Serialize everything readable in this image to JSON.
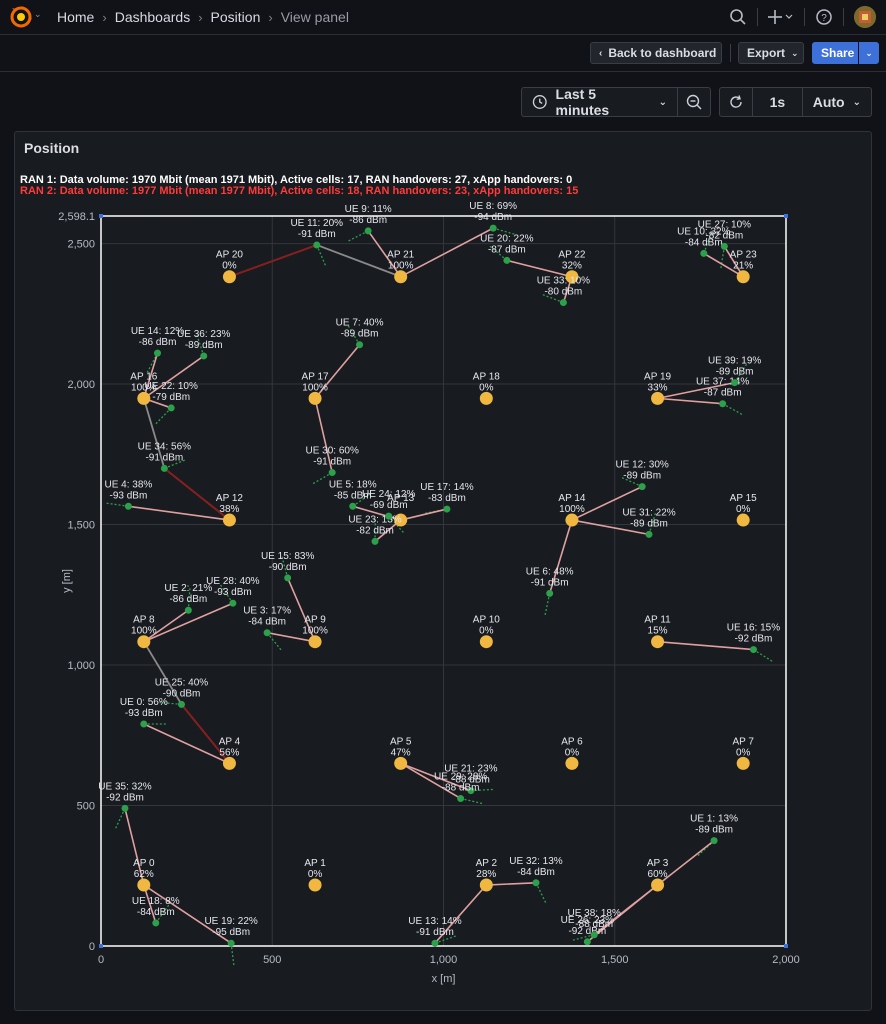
{
  "breadcrumb": {
    "home": "Home",
    "dashboards": "Dashboards",
    "position": "Position",
    "view": "View panel"
  },
  "icons": {
    "logo": "grafana-logo",
    "search": "search-icon",
    "add": "plus-icon",
    "help": "help-icon",
    "avatar": "user-avatar"
  },
  "toolbar": {
    "back": "Back to dashboard",
    "export": "Export",
    "share": "Share"
  },
  "timepicker": {
    "range": "Last 5 minutes",
    "refresh_interval": "1s",
    "auto": "Auto"
  },
  "panel": {
    "title": "Position",
    "ran1": "RAN 1: Data volume: 1970 Mbit (mean 1971 Mbit), Active cells: 17, RAN handovers: 27, xApp handovers: 0",
    "ran2": "RAN 2: Data volume: 1977 Mbit (mean 1977 Mbit), Active cells: 18, RAN handovers: 23, xApp handovers: 15"
  },
  "colors": {
    "accent": "#3d71d9",
    "ap": "#f0b840",
    "ue": "#2ca04a",
    "link": "#e0a0a0",
    "ran2_text": "#ff3b3b"
  },
  "chart_data": {
    "type": "scatter",
    "xlabel": "x [m]",
    "ylabel": "y [m]",
    "xlim": [
      0,
      2000
    ],
    "ylim": [
      0,
      2598.1
    ],
    "x_ticks": [
      "0",
      "500",
      "1,000",
      "1,500",
      "2,000"
    ],
    "y_ticks": [
      "0",
      "500",
      "1,000",
      "1,500",
      "2,000",
      "2,500"
    ],
    "y_max_label": "2,598.1",
    "grid": true,
    "aps": [
      {
        "name": "AP 0",
        "pct": "62%",
        "x": 125,
        "y": 217
      },
      {
        "name": "AP 1",
        "pct": "0%",
        "x": 625,
        "y": 217
      },
      {
        "name": "AP 2",
        "pct": "28%",
        "x": 1125,
        "y": 217
      },
      {
        "name": "AP 3",
        "pct": "60%",
        "x": 1625,
        "y": 217
      },
      {
        "name": "AP 4",
        "pct": "56%",
        "x": 375,
        "y": 650
      },
      {
        "name": "AP 5",
        "pct": "47%",
        "x": 875,
        "y": 650
      },
      {
        "name": "AP 6",
        "pct": "0%",
        "x": 1375,
        "y": 650
      },
      {
        "name": "AP 7",
        "pct": "0%",
        "x": 1875,
        "y": 650
      },
      {
        "name": "AP 8",
        "pct": "100%",
        "x": 125,
        "y": 1083
      },
      {
        "name": "AP 9",
        "pct": "100%",
        "x": 625,
        "y": 1083
      },
      {
        "name": "AP 10",
        "pct": "0%",
        "x": 1125,
        "y": 1083
      },
      {
        "name": "AP 11",
        "pct": "15%",
        "x": 1625,
        "y": 1083
      },
      {
        "name": "AP 12",
        "pct": "38%",
        "x": 375,
        "y": 1516
      },
      {
        "name": "AP 13",
        "pct": "",
        "x": 875,
        "y": 1516
      },
      {
        "name": "AP 14",
        "pct": "100%",
        "x": 1375,
        "y": 1516
      },
      {
        "name": "AP 15",
        "pct": "0%",
        "x": 1875,
        "y": 1516
      },
      {
        "name": "AP 16",
        "pct": "100%",
        "x": 125,
        "y": 1949
      },
      {
        "name": "AP 17",
        "pct": "100%",
        "x": 625,
        "y": 1949
      },
      {
        "name": "AP 18",
        "pct": "0%",
        "x": 1125,
        "y": 1949
      },
      {
        "name": "AP 19",
        "pct": "33%",
        "x": 1625,
        "y": 1949
      },
      {
        "name": "AP 20",
        "pct": "0%",
        "x": 375,
        "y": 2382
      },
      {
        "name": "AP 21",
        "pct": "100%",
        "x": 875,
        "y": 2382
      },
      {
        "name": "AP 22",
        "pct": "32%",
        "x": 1375,
        "y": 2382
      },
      {
        "name": "AP 23",
        "pct": "21%",
        "x": 1875,
        "y": 2382
      }
    ],
    "ues": [
      {
        "name": "UE 0: 56%",
        "dbm": "-93 dBm",
        "x": 125,
        "y": 790,
        "ap": "AP 4"
      },
      {
        "name": "UE 1: 13%",
        "dbm": "-89 dBm",
        "x": 1790,
        "y": 375,
        "ap": "AP 3"
      },
      {
        "name": "UE 2: 21%",
        "dbm": "-86 dBm",
        "x": 255,
        "y": 1195,
        "ap": "AP 8"
      },
      {
        "name": "UE 3: 17%",
        "dbm": "-84 dBm",
        "x": 485,
        "y": 1115,
        "ap": "AP 9"
      },
      {
        "name": "UE 4: 38%",
        "dbm": "-93 dBm",
        "x": 80,
        "y": 1565,
        "ap": "AP 12"
      },
      {
        "name": "UE 5: 18%",
        "dbm": "-85 dBm",
        "x": 735,
        "y": 1565,
        "ap": "AP 13"
      },
      {
        "name": "UE 6: 48%",
        "dbm": "-91 dBm",
        "x": 1310,
        "y": 1255,
        "ap": "AP 14"
      },
      {
        "name": "UE 7: 40%",
        "dbm": "-89 dBm",
        "x": 755,
        "y": 2140,
        "ap": "AP 17"
      },
      {
        "name": "UE 8: 69%",
        "dbm": "-94 dBm",
        "x": 1145,
        "y": 2555,
        "ap": "AP 21"
      },
      {
        "name": "UE 9: 11%",
        "dbm": "-86 dBm",
        "x": 780,
        "y": 2545,
        "ap": "AP 21"
      },
      {
        "name": "UE 10: 32%",
        "dbm": "-84 dBm",
        "x": 1760,
        "y": 2465,
        "ap": "AP 23"
      },
      {
        "name": "UE 11: 20%",
        "dbm": "-91 dBm",
        "x": 630,
        "y": 2495,
        "ap": "AP 20"
      },
      {
        "name": "UE 12: 30%",
        "dbm": "-89 dBm",
        "x": 1580,
        "y": 1635,
        "ap": "AP 14"
      },
      {
        "name": "UE 13: 14%",
        "dbm": "-91 dBm",
        "x": 975,
        "y": 10,
        "ap": "AP 2"
      },
      {
        "name": "UE 14: 12%",
        "dbm": "-86 dBm",
        "x": 165,
        "y": 2110,
        "ap": "AP 16"
      },
      {
        "name": "UE 15: 83%",
        "dbm": "-90 dBm",
        "x": 545,
        "y": 1310,
        "ap": "AP 9"
      },
      {
        "name": "UE 16: 15%",
        "dbm": "-92 dBm",
        "x": 1905,
        "y": 1055,
        "ap": "AP 11"
      },
      {
        "name": "UE 17: 14%",
        "dbm": "-83 dBm",
        "x": 1010,
        "y": 1555,
        "ap": "AP 13"
      },
      {
        "name": "UE 18: 8%",
        "dbm": "-84 dBm",
        "x": 160,
        "y": 82,
        "ap": "AP 0"
      },
      {
        "name": "UE 19: 22%",
        "dbm": "-95 dBm",
        "x": 380,
        "y": 10,
        "ap": "AP 0"
      },
      {
        "name": "UE 20: 22%",
        "dbm": "-87 dBm",
        "x": 1185,
        "y": 2440,
        "ap": "AP 22"
      },
      {
        "name": "UE 21: 23%",
        "dbm": "-88 dBm",
        "x": 1080,
        "y": 553,
        "ap": "AP 5"
      },
      {
        "name": "UE 22: 10%",
        "dbm": "-79 dBm",
        "x": 205,
        "y": 1915,
        "ap": "AP 16"
      },
      {
        "name": "UE 23: 13%",
        "dbm": "-82 dBm",
        "x": 800,
        "y": 1440,
        "ap": "AP 13"
      },
      {
        "name": "UE 24: 12%",
        "dbm": "-69 dBm",
        "x": 840,
        "y": 1530,
        "ap": "AP 13"
      },
      {
        "name": "UE 25: 40%",
        "dbm": "-90 dBm",
        "x": 235,
        "y": 860,
        "ap": "AP 4"
      },
      {
        "name": "UE 26: 23%",
        "dbm": "-92 dBm",
        "x": 1420,
        "y": 15,
        "ap": "AP 3"
      },
      {
        "name": "UE 27: 10%",
        "dbm": "-82 dBm",
        "x": 1820,
        "y": 2490,
        "ap": "AP 23"
      },
      {
        "name": "UE 28: 40%",
        "dbm": "-93 dBm",
        "x": 385,
        "y": 1220,
        "ap": "AP 8"
      },
      {
        "name": "UE 29: 28%",
        "dbm": "-88 dBm",
        "x": 1050,
        "y": 525,
        "ap": "AP 5"
      },
      {
        "name": "UE 30: 60%",
        "dbm": "-91 dBm",
        "x": 675,
        "y": 1685,
        "ap": "AP 17"
      },
      {
        "name": "UE 31: 22%",
        "dbm": "-89 dBm",
        "x": 1600,
        "y": 1465,
        "ap": "AP 14"
      },
      {
        "name": "UE 32: 13%",
        "dbm": "-84 dBm",
        "x": 1270,
        "y": 225,
        "ap": "AP 2"
      },
      {
        "name": "UE 33: 10%",
        "dbm": "-80 dBm",
        "x": 1350,
        "y": 2290,
        "ap": "AP 22"
      },
      {
        "name": "UE 34: 56%",
        "dbm": "-91 dBm",
        "x": 185,
        "y": 1700,
        "ap": "AP 12"
      },
      {
        "name": "UE 35: 32%",
        "dbm": "-92 dBm",
        "x": 70,
        "y": 490,
        "ap": "AP 0"
      },
      {
        "name": "UE 36: 23%",
        "dbm": "-89 dBm",
        "x": 300,
        "y": 2100,
        "ap": "AP 16"
      },
      {
        "name": "UE 37: 14%",
        "dbm": "-87 dBm",
        "x": 1815,
        "y": 1930,
        "ap": "AP 19"
      },
      {
        "name": "UE 38: 18%",
        "dbm": "-88 dBm",
        "x": 1440,
        "y": 40,
        "ap": "AP 3"
      },
      {
        "name": "UE 39: 19%",
        "dbm": "-89 dBm",
        "x": 1850,
        "y": 2005,
        "ap": "AP 19"
      }
    ],
    "handover_links": [
      {
        "from": "AP 20",
        "to": "UE 11",
        "color": "#8b1a1a"
      },
      {
        "from": "UE 11",
        "to": "AP 21",
        "color": "#8a8a8a"
      },
      {
        "from": "AP 16",
        "to": "UE 34",
        "color": "#8a8a8a"
      },
      {
        "from": "UE 34",
        "to": "AP 12",
        "color": "#8b1a1a"
      },
      {
        "from": "AP 8",
        "to": "UE 25",
        "color": "#8a8a8a"
      },
      {
        "from": "UE 25",
        "to": "AP 4",
        "color": "#8b1a1a"
      }
    ]
  }
}
